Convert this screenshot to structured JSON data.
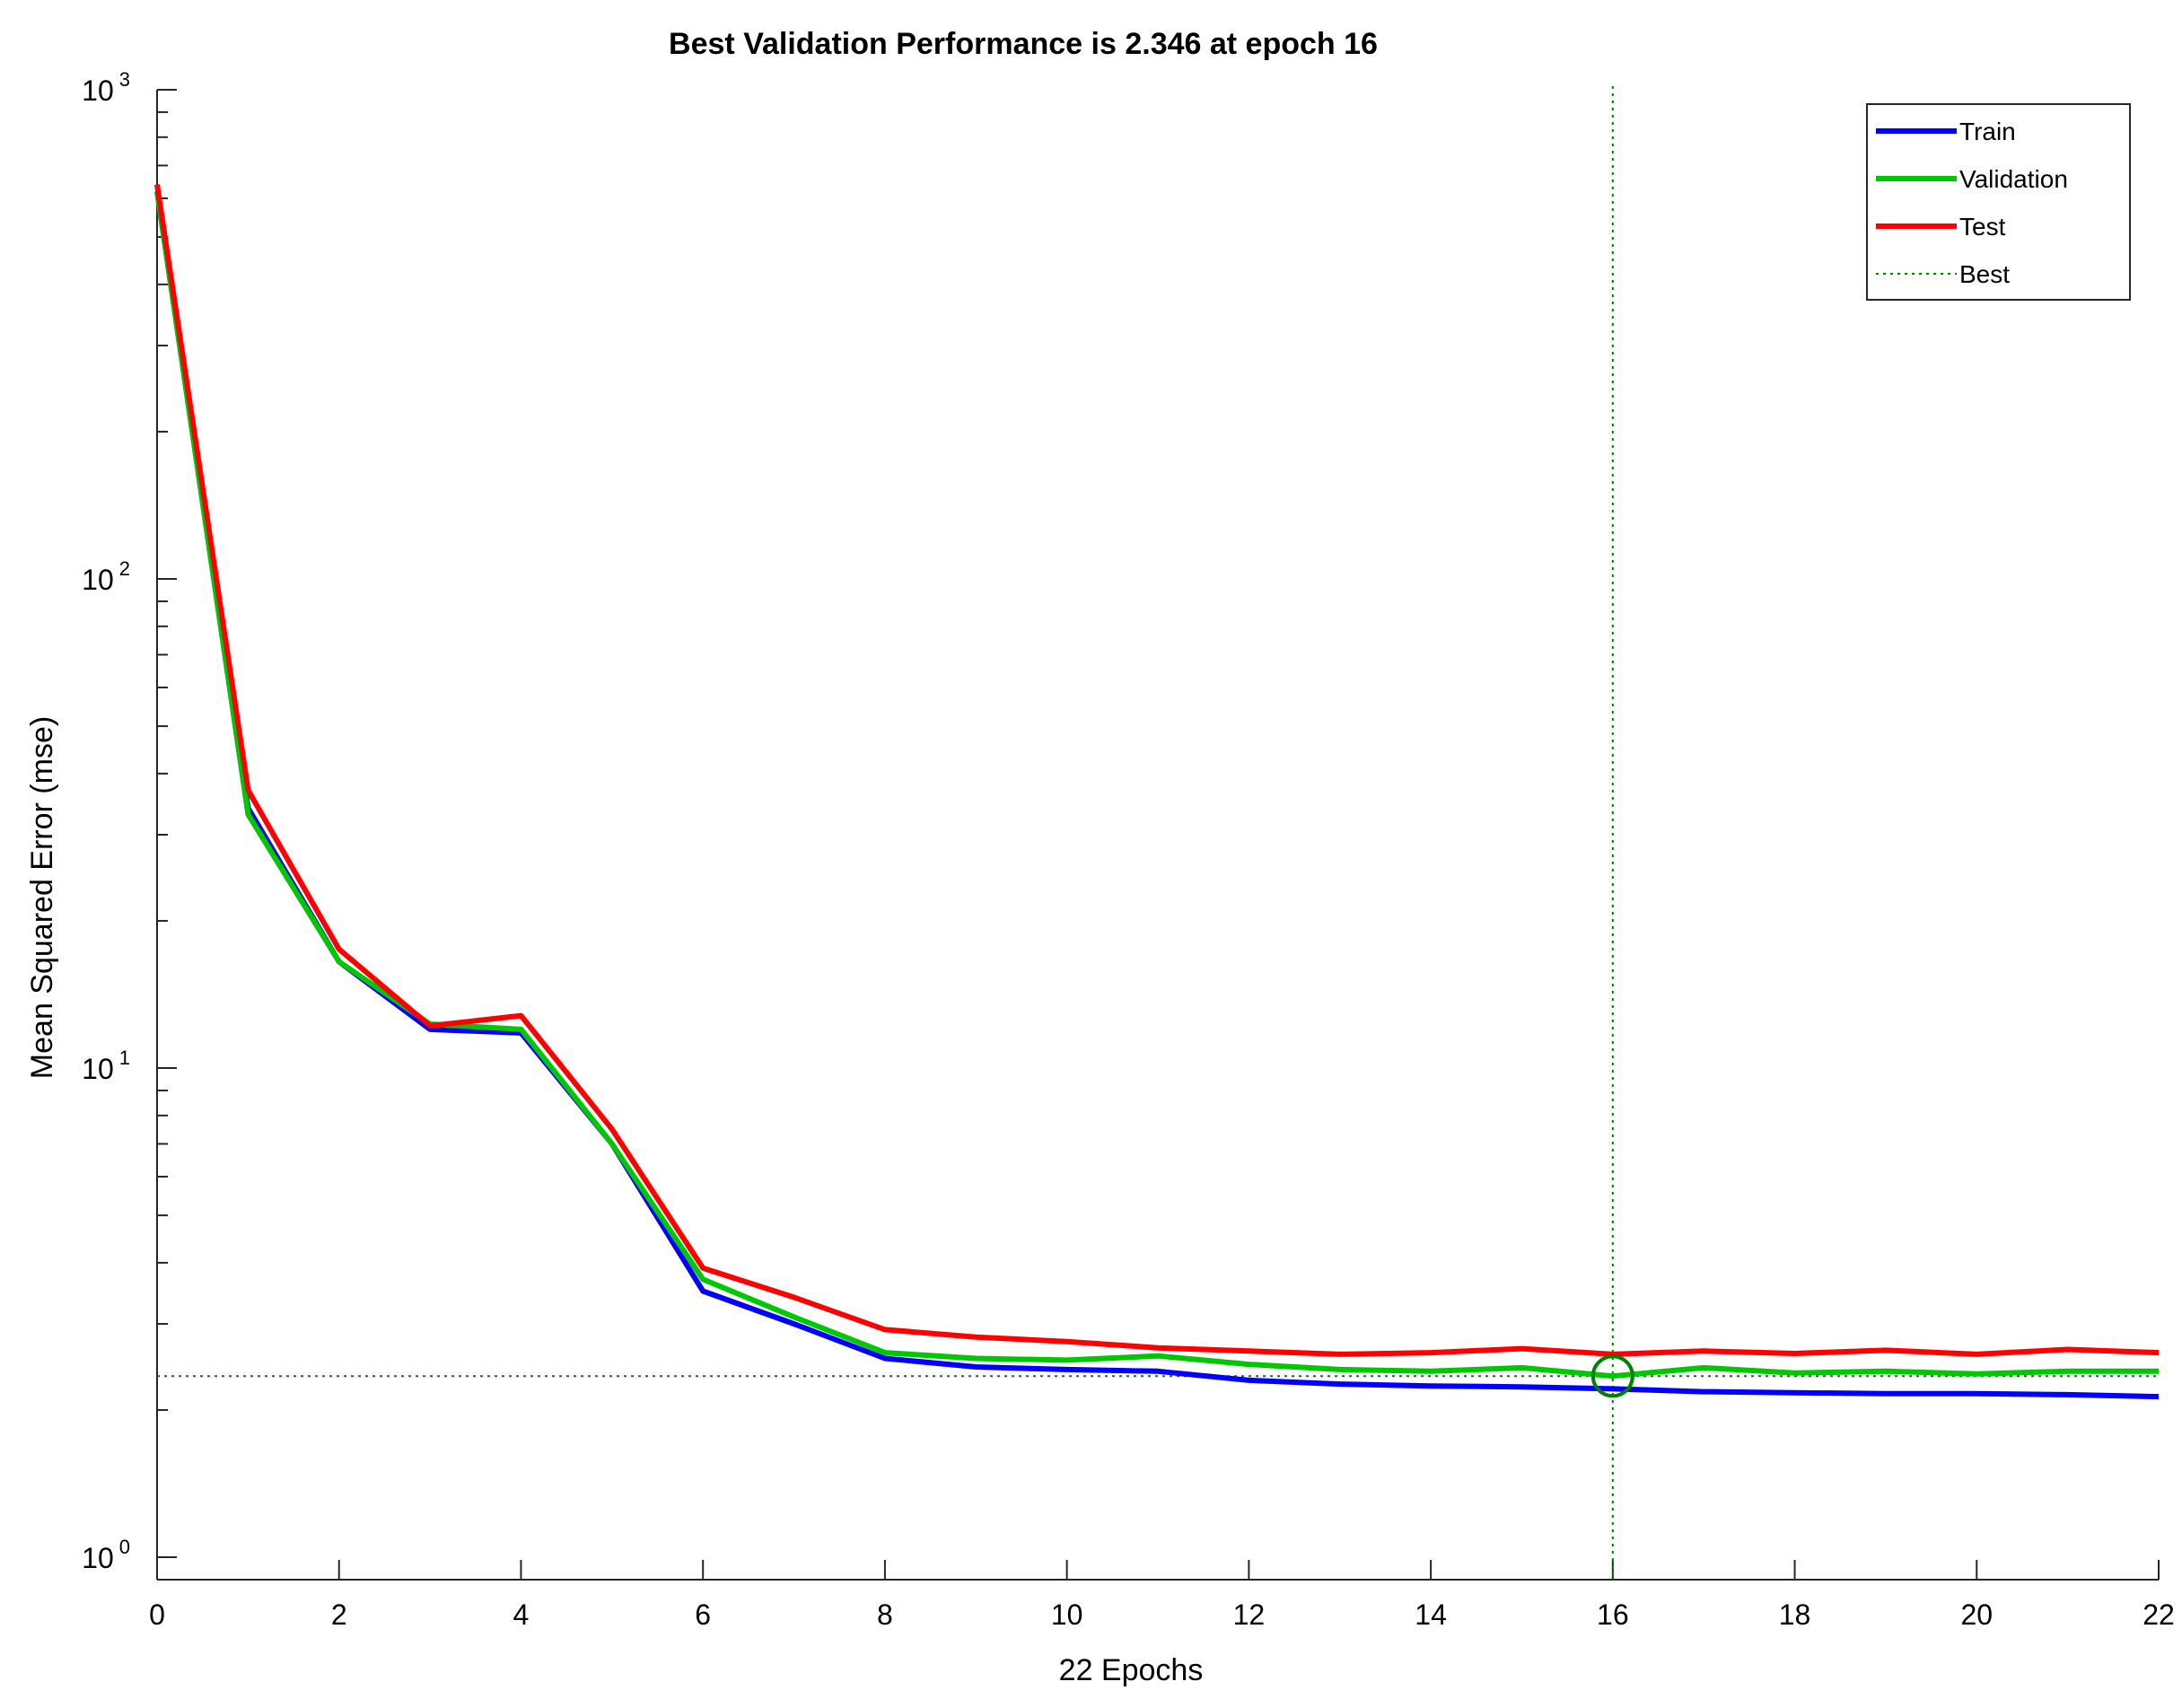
{
  "chart_data": {
    "type": "line",
    "title": "Best Validation Performance is 2.346 at epoch 16",
    "xlabel": "22 Epochs",
    "ylabel": "Mean Squared Error  (mse)",
    "xlim": [
      0,
      22
    ],
    "ylim": [
      0.9,
      1000
    ],
    "yscale": "log",
    "x_ticks": [
      0,
      2,
      4,
      6,
      8,
      10,
      12,
      14,
      16,
      18,
      20,
      22
    ],
    "y_ticks": [
      {
        "value": 1,
        "base": "10",
        "exp": "0"
      },
      {
        "value": 10,
        "base": "10",
        "exp": "1"
      },
      {
        "value": 100,
        "base": "10",
        "exp": "2"
      },
      {
        "value": 1000,
        "base": "10",
        "exp": "3"
      }
    ],
    "grid": false,
    "legend_position": "top-right",
    "series": [
      {
        "name": "Train",
        "color": "#0000ff",
        "style": "solid",
        "x": [
          0,
          1,
          2,
          3,
          4,
          5,
          6,
          7,
          8,
          9,
          10,
          11,
          12,
          13,
          14,
          15,
          16,
          17,
          18,
          19,
          20,
          21,
          22
        ],
        "y": [
          620,
          34,
          16.5,
          12.0,
          11.8,
          7.0,
          3.5,
          3.0,
          2.55,
          2.45,
          2.42,
          2.4,
          2.3,
          2.26,
          2.24,
          2.23,
          2.21,
          2.18,
          2.17,
          2.16,
          2.16,
          2.15,
          2.13
        ]
      },
      {
        "name": "Validation",
        "color": "#00c800",
        "style": "solid",
        "x": [
          0,
          1,
          2,
          3,
          4,
          5,
          6,
          7,
          8,
          9,
          10,
          11,
          12,
          13,
          14,
          15,
          16,
          17,
          18,
          19,
          20,
          21,
          22
        ],
        "y": [
          620,
          33,
          16.5,
          12.3,
          12.0,
          7.0,
          3.7,
          3.1,
          2.62,
          2.55,
          2.53,
          2.58,
          2.48,
          2.42,
          2.4,
          2.44,
          2.346,
          2.44,
          2.38,
          2.4,
          2.37,
          2.4,
          2.4
        ]
      },
      {
        "name": "Test",
        "color": "#ff0000",
        "style": "solid",
        "x": [
          0,
          1,
          2,
          3,
          4,
          5,
          6,
          7,
          8,
          9,
          10,
          11,
          12,
          13,
          14,
          15,
          16,
          17,
          18,
          19,
          20,
          21,
          22
        ],
        "y": [
          640,
          37,
          17.5,
          12.2,
          12.8,
          7.5,
          3.9,
          3.4,
          2.92,
          2.82,
          2.76,
          2.68,
          2.64,
          2.6,
          2.62,
          2.67,
          2.6,
          2.64,
          2.61,
          2.65,
          2.6,
          2.66,
          2.62
        ]
      }
    ],
    "best": {
      "name": "Best",
      "epoch": 16,
      "value": 2.346,
      "color": "#008000",
      "style": "dotted"
    }
  }
}
